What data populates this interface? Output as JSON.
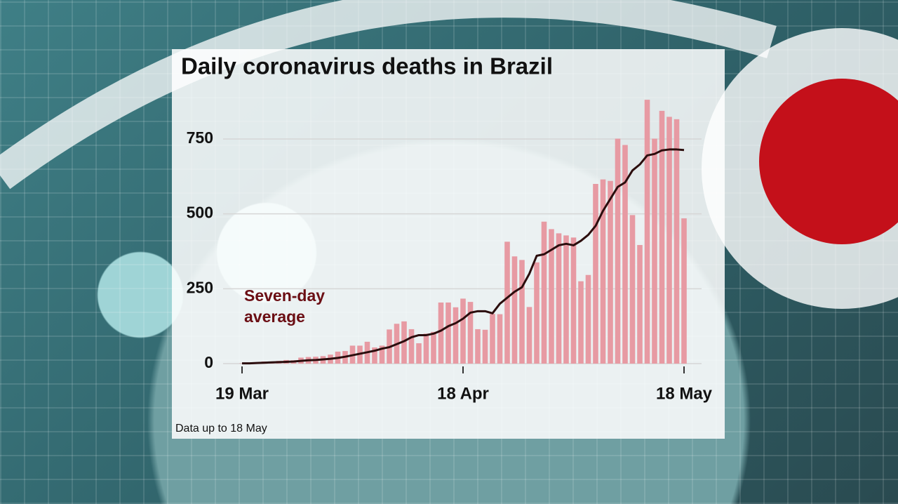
{
  "chart_data": {
    "type": "bar",
    "title": "Daily coronavirus deaths in Brazil",
    "annotation": [
      "Seven-day",
      "average"
    ],
    "footnote": "Data up to 18 May",
    "categories": [
      "19 Mar",
      null,
      null,
      null,
      null,
      null,
      null,
      null,
      null,
      null,
      null,
      null,
      null,
      null,
      null,
      null,
      null,
      null,
      null,
      null,
      null,
      null,
      null,
      null,
      null,
      null,
      null,
      null,
      null,
      null,
      "18 Apr",
      null,
      null,
      null,
      null,
      null,
      null,
      null,
      null,
      null,
      null,
      null,
      null,
      null,
      null,
      null,
      null,
      null,
      null,
      null,
      null,
      null,
      null,
      null,
      null,
      null,
      null,
      null,
      null,
      null,
      "18 May"
    ],
    "series": [
      {
        "type": "bar",
        "color": "#e79aa3",
        "values": [
          1,
          3,
          4,
          7,
          7,
          9,
          12,
          11,
          20,
          22,
          23,
          25,
          30,
          40,
          42,
          60,
          60,
          73,
          54,
          60,
          114,
          133,
          141,
          115,
          68,
          100,
          106,
          204,
          204,
          188,
          217,
          206,
          115,
          113,
          166,
          165,
          407,
          358,
          346,
          189,
          338,
          474,
          449,
          435,
          428,
          421,
          275,
          296,
          600,
          615,
          610,
          751,
          730,
          496,
          396,
          881,
          751,
          844,
          824,
          816,
          485
        ]
      },
      {
        "type": "line",
        "name": "Seven-day average",
        "color": "#2b0d0d",
        "values": [
          1,
          1,
          2,
          3,
          4,
          5,
          6,
          7,
          9,
          11,
          12,
          14,
          16,
          19,
          23,
          28,
          33,
          38,
          43,
          50,
          55,
          65,
          75,
          88,
          95,
          95,
          100,
          110,
          125,
          135,
          150,
          170,
          175,
          175,
          168,
          200,
          220,
          240,
          255,
          300,
          360,
          365,
          380,
          395,
          400,
          395,
          410,
          430,
          460,
          510,
          550,
          590,
          605,
          645,
          665,
          695,
          700,
          712,
          715,
          715,
          713
        ]
      }
    ],
    "ylim": [
      0,
      900
    ],
    "yticks": [
      0,
      250,
      500,
      750
    ],
    "grid": true
  }
}
